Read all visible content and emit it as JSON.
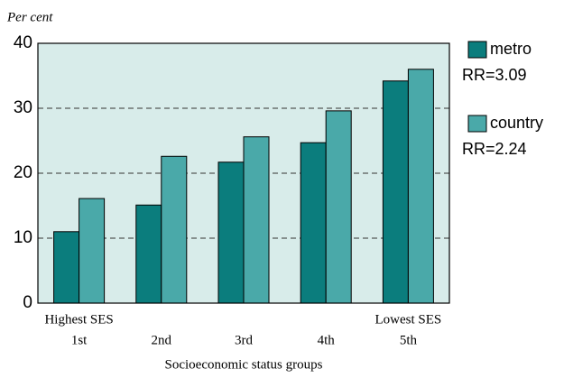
{
  "chart_data": {
    "type": "bar",
    "y_label": "Per cent",
    "x_label": "Socioeconomic status groups",
    "categories": [
      "1st",
      "2nd",
      "3rd",
      "4th",
      "5th"
    ],
    "category_notes": [
      {
        "index": 0,
        "text": "Highest SES"
      },
      {
        "index": 4,
        "text": "Lowest SES"
      }
    ],
    "series": [
      {
        "name": "metro",
        "color": "#0b7d7d",
        "rr_label": "RR=3.09",
        "values": [
          11.0,
          15.1,
          21.7,
          24.7,
          34.2
        ]
      },
      {
        "name": "country",
        "color": "#4aa9a9",
        "rr_label": "RR=2.24",
        "values": [
          16.1,
          22.6,
          25.6,
          29.6,
          36.0
        ]
      }
    ],
    "ylim": [
      0,
      40
    ],
    "yticks": [
      0,
      10,
      20,
      30,
      40
    ],
    "grid": true,
    "plot_background": "#d8ecea"
  }
}
